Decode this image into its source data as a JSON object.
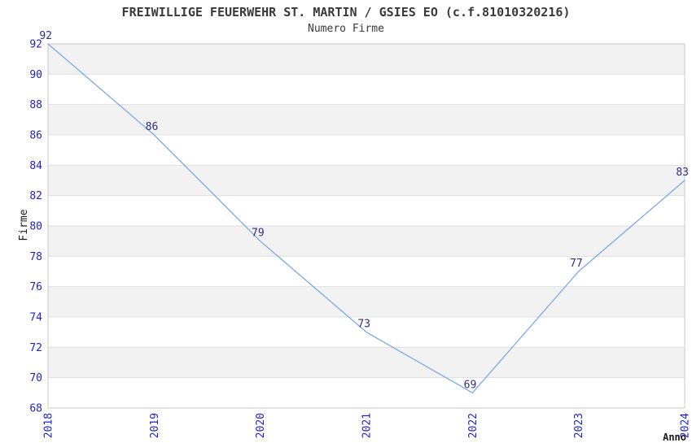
{
  "chart_data": {
    "type": "line",
    "title": "FREIWILLIGE FEUERWEHR ST. MARTIN / GSIES EO (c.f.81010320216)",
    "subtitle": "Numero Firme",
    "xlabel": "Anno",
    "ylabel": "Firme",
    "x": [
      "2018",
      "2019",
      "2020",
      "2021",
      "2022",
      "2023",
      "2024"
    ],
    "series": [
      {
        "name": "Numero Firme",
        "values": [
          92,
          86,
          79,
          73,
          69,
          77,
          83
        ]
      }
    ],
    "ylim": [
      68,
      92
    ],
    "ytick_step": 2,
    "yticks": [
      68,
      70,
      72,
      74,
      76,
      78,
      80,
      82,
      84,
      86,
      88,
      90,
      92
    ],
    "data_labels": [
      92,
      86,
      79,
      73,
      69,
      77,
      83
    ],
    "legend": "none",
    "grid": "horizontal",
    "background_bands": "alternating gray/white per 2 units, gray at top",
    "xtick_rotation": 90,
    "colors": {
      "line": "#78abe6",
      "tick_label": "#2222cc",
      "data_label": "#2e2e85",
      "title_text": "#3a3a3a",
      "axis_label_text": "#1a1a1a",
      "band_fill": "#f2f2f2",
      "gridline": "#e0e0e0",
      "plot_border": "#c8c8c8",
      "background": "#ffffff"
    }
  }
}
